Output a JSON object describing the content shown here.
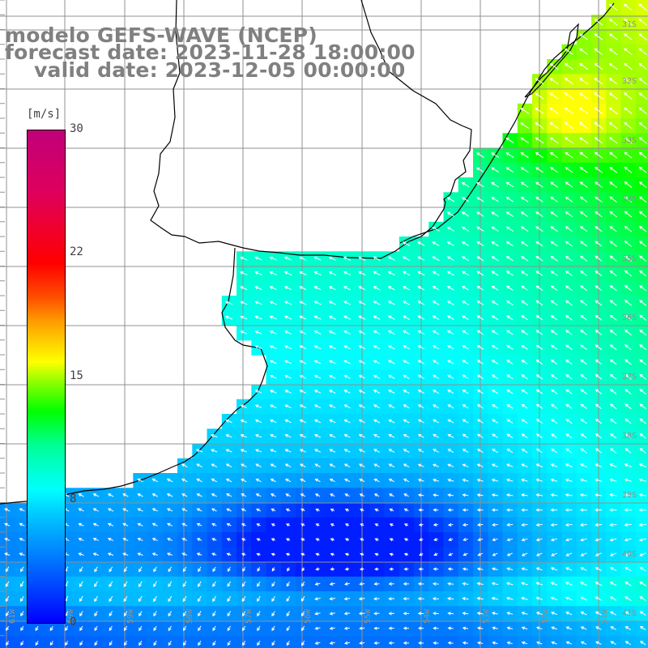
{
  "title": {
    "model": "modelo GEFS-WAVE (NCEP)",
    "forecast": "forecast date: 2023-11-28 18:00:00",
    "valid": "valid date: 2023-12-05 00:00:00"
  },
  "colorbar": {
    "unit": "[m/s]",
    "ticks": [
      "30",
      "22",
      "15",
      "8",
      "0"
    ],
    "range": [
      0,
      30
    ],
    "colors": [
      "#0000ff",
      "#00c8ff",
      "#00ffff",
      "#00ff96",
      "#00ff00",
      "#ffff00",
      "#ff7800",
      "#ff0000",
      "#c0007a"
    ]
  },
  "grid": {
    "lat_labels": [
      "31S",
      "32S",
      "33S",
      "34S",
      "35S",
      "36S",
      "37S",
      "38S",
      "39S",
      "40S",
      "41S"
    ],
    "lon_labels": [
      "61W",
      "60W",
      "59W",
      "58W",
      "57W",
      "56W",
      "55W",
      "54W",
      "53W",
      "52W",
      "51W"
    ]
  },
  "field": {
    "variable": "wind speed and direction",
    "palette_land": "#ffffff",
    "coastline_color": "#000000",
    "gridline_color": "#909090"
  }
}
